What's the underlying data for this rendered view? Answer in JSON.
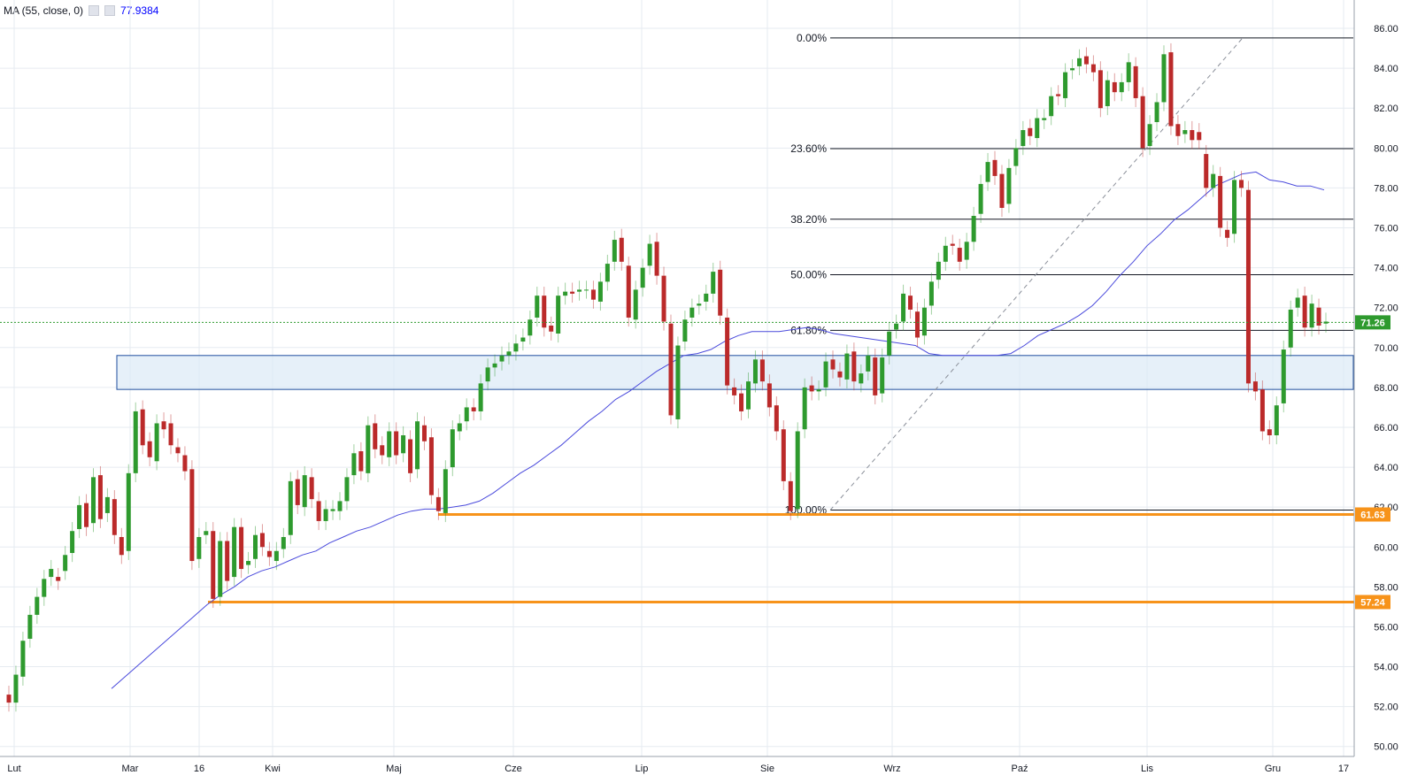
{
  "legend": {
    "indicator": "MA (55, close, 0)",
    "value": "77.9384",
    "settings_icon": "gear-icon",
    "close_icon": "close-icon"
  },
  "colors": {
    "up": "#2e9a2e",
    "down": "#bb2a2a",
    "ma": "#4a4adc",
    "fib": "#131722",
    "support": "#f7931a",
    "zone_fill": "#dce9f7",
    "zone_stroke": "#1f4e9e",
    "last_price": "#2e9a2e",
    "grid": "#e6ebf1"
  },
  "chart_data": {
    "type": "candlestick",
    "x_labels": [
      "Lut",
      "Mar",
      "16",
      "Kwi",
      "Maj",
      "Cze",
      "Lip",
      "Sie",
      "Wrz",
      "Paź",
      "Lis",
      "Gru",
      "17"
    ],
    "y_ticks": [
      "50.00",
      "52.00",
      "54.00",
      "56.00",
      "58.00",
      "60.00",
      "62.00",
      "64.00",
      "66.00",
      "68.00",
      "70.00",
      "72.00",
      "74.00",
      "76.00",
      "78.00",
      "80.00",
      "82.00",
      "84.00",
      "86.00"
    ],
    "ylim": [
      49.5,
      86.8
    ],
    "last_price": "71.26",
    "support_levels": [
      {
        "value": 61.63,
        "label": "61.63"
      },
      {
        "value": 57.24,
        "label": "57.24"
      }
    ],
    "zone": {
      "low": 67.9,
      "high": 69.6
    },
    "fibonacci": [
      {
        "label": "0.00%",
        "value": 85.52
      },
      {
        "label": "23.60%",
        "value": 79.97
      },
      {
        "label": "38.20%",
        "value": 76.43
      },
      {
        "label": "50.00%",
        "value": 73.65
      },
      {
        "label": "61.80%",
        "value": 70.86
      },
      {
        "label": "100.00%",
        "value": 61.85
      }
    ],
    "candles": [
      [
        52.6,
        52.2
      ],
      [
        52.2,
        53.6
      ],
      [
        53.5,
        55.3
      ],
      [
        55.4,
        56.6
      ],
      [
        56.6,
        57.5
      ],
      [
        57.5,
        58.4
      ],
      [
        58.5,
        58.9
      ],
      [
        58.5,
        58.3
      ],
      [
        58.8,
        59.6
      ],
      [
        59.7,
        60.8
      ],
      [
        60.9,
        62.1
      ],
      [
        62.2,
        61.0
      ],
      [
        61.2,
        63.5
      ],
      [
        63.6,
        61.4
      ],
      [
        61.7,
        62.5
      ],
      [
        62.4,
        60.6
      ],
      [
        60.5,
        59.6
      ],
      [
        59.8,
        63.7
      ],
      [
        63.7,
        66.8
      ],
      [
        66.9,
        65.1
      ],
      [
        65.3,
        64.5
      ],
      [
        64.3,
        66.2
      ],
      [
        66.3,
        65.9
      ],
      [
        66.2,
        65.1
      ],
      [
        65.0,
        64.7
      ],
      [
        64.6,
        63.8
      ],
      [
        63.9,
        59.3
      ],
      [
        59.4,
        60.5
      ],
      [
        60.6,
        60.8
      ],
      [
        60.8,
        57.4
      ],
      [
        57.5,
        60.3
      ],
      [
        60.3,
        58.3
      ],
      [
        58.5,
        61.0
      ],
      [
        61.0,
        58.9
      ],
      [
        59.1,
        59.3
      ],
      [
        59.4,
        60.6
      ],
      [
        60.7,
        60.0
      ],
      [
        59.8,
        59.5
      ],
      [
        59.3,
        59.8
      ],
      [
        59.9,
        60.5
      ],
      [
        60.6,
        63.3
      ],
      [
        63.4,
        62.1
      ],
      [
        62.0,
        63.6
      ],
      [
        63.5,
        62.4
      ],
      [
        62.3,
        61.3
      ],
      [
        61.3,
        61.9
      ],
      [
        61.8,
        61.9
      ],
      [
        61.8,
        62.3
      ],
      [
        62.3,
        63.5
      ],
      [
        63.6,
        64.7
      ],
      [
        64.8,
        63.8
      ],
      [
        63.7,
        66.1
      ],
      [
        66.2,
        64.9
      ],
      [
        65.1,
        64.6
      ],
      [
        64.5,
        65.8
      ],
      [
        65.8,
        64.6
      ],
      [
        64.7,
        65.6
      ],
      [
        65.4,
        63.7
      ],
      [
        63.9,
        66.3
      ],
      [
        66.1,
        65.3
      ],
      [
        65.5,
        62.6
      ],
      [
        62.5,
        61.8
      ],
      [
        61.7,
        63.9
      ],
      [
        64.0,
        65.9
      ],
      [
        65.8,
        66.2
      ],
      [
        66.3,
        67.0
      ],
      [
        67.0,
        66.8
      ],
      [
        66.8,
        68.2
      ],
      [
        68.3,
        69.0
      ],
      [
        69.0,
        69.2
      ],
      [
        69.3,
        69.6
      ],
      [
        69.6,
        69.8
      ],
      [
        69.8,
        70.2
      ],
      [
        70.3,
        70.5
      ],
      [
        70.6,
        71.4
      ],
      [
        71.5,
        72.6
      ],
      [
        72.6,
        71.0
      ],
      [
        71.1,
        70.8
      ],
      [
        70.7,
        72.6
      ],
      [
        72.6,
        72.8
      ],
      [
        72.8,
        72.7
      ],
      [
        72.8,
        72.9
      ],
      [
        72.9,
        72.9
      ],
      [
        72.9,
        72.4
      ],
      [
        72.3,
        73.3
      ],
      [
        73.3,
        74.2
      ],
      [
        74.3,
        75.4
      ],
      [
        75.5,
        74.3
      ],
      [
        74.1,
        71.5
      ],
      [
        71.4,
        72.9
      ],
      [
        73.0,
        74.0
      ],
      [
        74.1,
        75.2
      ],
      [
        75.3,
        73.6
      ],
      [
        73.6,
        71.3
      ],
      [
        71.2,
        66.6
      ],
      [
        66.4,
        70.1
      ],
      [
        70.3,
        71.4
      ],
      [
        71.5,
        72.0
      ],
      [
        72.1,
        72.2
      ],
      [
        72.3,
        72.7
      ],
      [
        72.7,
        73.8
      ],
      [
        73.9,
        71.6
      ],
      [
        71.5,
        68.1
      ],
      [
        68.0,
        67.6
      ],
      [
        67.7,
        66.8
      ],
      [
        66.9,
        68.3
      ],
      [
        68.2,
        69.4
      ],
      [
        69.4,
        68.3
      ],
      [
        68.2,
        67.0
      ],
      [
        67.1,
        65.8
      ],
      [
        65.9,
        63.3
      ],
      [
        63.3,
        61.8
      ],
      [
        61.9,
        65.8
      ],
      [
        65.9,
        68.0
      ],
      [
        68.1,
        67.8
      ],
      [
        67.8,
        67.9
      ],
      [
        68.0,
        69.3
      ],
      [
        69.4,
        68.9
      ],
      [
        68.8,
        68.5
      ],
      [
        68.4,
        69.7
      ],
      [
        69.8,
        68.3
      ],
      [
        68.2,
        68.7
      ],
      [
        68.8,
        69.6
      ],
      [
        69.5,
        67.6
      ],
      [
        67.7,
        69.5
      ],
      [
        69.6,
        70.8
      ],
      [
        70.9,
        71.2
      ],
      [
        71.3,
        72.7
      ],
      [
        72.6,
        71.9
      ],
      [
        71.8,
        70.5
      ],
      [
        70.6,
        72.0
      ],
      [
        72.1,
        73.3
      ],
      [
        73.4,
        74.3
      ],
      [
        74.3,
        75.1
      ],
      [
        75.2,
        75.1
      ],
      [
        75.0,
        74.3
      ],
      [
        74.4,
        75.3
      ],
      [
        75.3,
        76.6
      ],
      [
        76.7,
        78.2
      ],
      [
        78.3,
        79.3
      ],
      [
        79.4,
        78.6
      ],
      [
        78.7,
        77.0
      ],
      [
        77.2,
        79.0
      ],
      [
        79.1,
        80.0
      ],
      [
        80.1,
        80.9
      ],
      [
        81.0,
        80.6
      ],
      [
        80.5,
        81.5
      ],
      [
        81.4,
        81.5
      ],
      [
        81.6,
        82.6
      ],
      [
        82.7,
        82.6
      ],
      [
        82.5,
        83.8
      ],
      [
        83.9,
        84.0
      ],
      [
        84.1,
        84.5
      ],
      [
        84.6,
        84.2
      ],
      [
        84.2,
        83.8
      ],
      [
        83.9,
        82.0
      ],
      [
        82.1,
        83.4
      ],
      [
        83.3,
        82.8
      ],
      [
        82.8,
        83.3
      ],
      [
        83.3,
        84.3
      ],
      [
        84.1,
        82.5
      ],
      [
        82.6,
        80.0
      ],
      [
        80.1,
        81.2
      ],
      [
        81.3,
        82.3
      ],
      [
        82.3,
        84.7
      ],
      [
        84.8,
        81.1
      ],
      [
        81.2,
        80.6
      ],
      [
        80.7,
        80.9
      ],
      [
        80.9,
        80.4
      ],
      [
        80.8,
        80.4
      ],
      [
        79.7,
        78.0
      ],
      [
        78.0,
        78.7
      ],
      [
        78.6,
        76.0
      ],
      [
        75.9,
        75.5
      ],
      [
        75.7,
        78.4
      ],
      [
        78.4,
        78.0
      ],
      [
        77.9,
        68.2
      ],
      [
        68.3,
        67.8
      ],
      [
        67.9,
        65.8
      ],
      [
        65.9,
        65.6
      ],
      [
        65.6,
        67.1
      ],
      [
        67.2,
        69.9
      ],
      [
        70.0,
        71.9
      ],
      [
        72.0,
        72.5
      ],
      [
        72.6,
        71.0
      ],
      [
        71.0,
        72.2
      ],
      [
        72.0,
        71.1
      ],
      [
        71.2,
        71.3
      ]
    ],
    "ma_values": [
      52.9,
      53.5,
      54.1,
      54.7,
      55.3,
      55.9,
      56.5,
      57.1,
      57.6,
      58.0,
      58.5,
      58.8,
      59.0,
      59.3,
      59.6,
      59.8,
      60.2,
      60.5,
      60.8,
      61.0,
      61.3,
      61.6,
      61.8,
      61.9,
      61.9,
      62.0,
      62.1,
      62.3,
      62.7,
      63.2,
      63.7,
      64.1,
      64.6,
      65.1,
      65.7,
      66.3,
      66.8,
      67.4,
      67.8,
      68.3,
      68.8,
      69.2,
      69.6,
      69.7,
      69.9,
      70.3,
      70.6,
      70.8,
      70.8,
      70.8,
      70.9,
      71.0,
      70.9,
      70.7,
      70.6,
      70.5,
      70.4,
      70.3,
      70.2,
      70.1,
      69.7,
      69.6,
      69.6,
      69.6,
      69.6,
      69.6,
      69.7,
      70.1,
      70.6,
      70.9,
      71.2,
      71.6,
      72.1,
      72.8,
      73.6,
      74.3,
      75.1,
      75.7,
      76.4,
      76.9,
      77.5,
      78.1,
      78.4,
      78.7,
      78.8,
      78.4,
      78.3,
      78.1,
      78.1,
      77.9
    ]
  }
}
